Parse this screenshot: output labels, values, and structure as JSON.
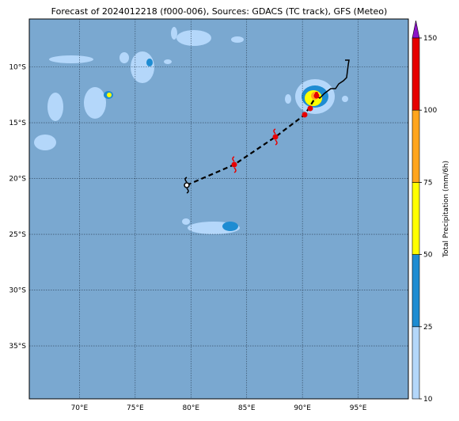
{
  "map": {
    "title": "Forecast of 2024012218 (f000-006), Sources: GDACS (TC track), GFS (Meteo)",
    "xlim": [
      65.5,
      99.5
    ],
    "ylim": [
      -39.75,
      -5.7
    ],
    "xticks": [
      {
        "value": 70,
        "label": "70°E"
      },
      {
        "value": 75,
        "label": "75°E"
      },
      {
        "value": 80,
        "label": "80°E"
      },
      {
        "value": 85,
        "label": "85°E"
      },
      {
        "value": 90,
        "label": "90°E"
      },
      {
        "value": 95,
        "label": "95°E"
      }
    ],
    "yticks": [
      {
        "value": -10,
        "label": "10°S"
      },
      {
        "value": -15,
        "label": "15°S"
      },
      {
        "value": -20,
        "label": "20°S"
      },
      {
        "value": -25,
        "label": "25°S"
      },
      {
        "value": -30,
        "label": "30°S"
      },
      {
        "value": -35,
        "label": "35°S"
      }
    ],
    "grid": true,
    "colorbar": {
      "label": "Total Precipitation (mm/6h)",
      "levels": [
        10,
        25,
        50,
        75,
        100,
        150
      ],
      "colors": [
        "#b4d7fa",
        "#1e8cd2",
        "#ffff00",
        "#ffa51e",
        "#e60000"
      ],
      "extend_color": "#8c14c8"
    }
  }
}
